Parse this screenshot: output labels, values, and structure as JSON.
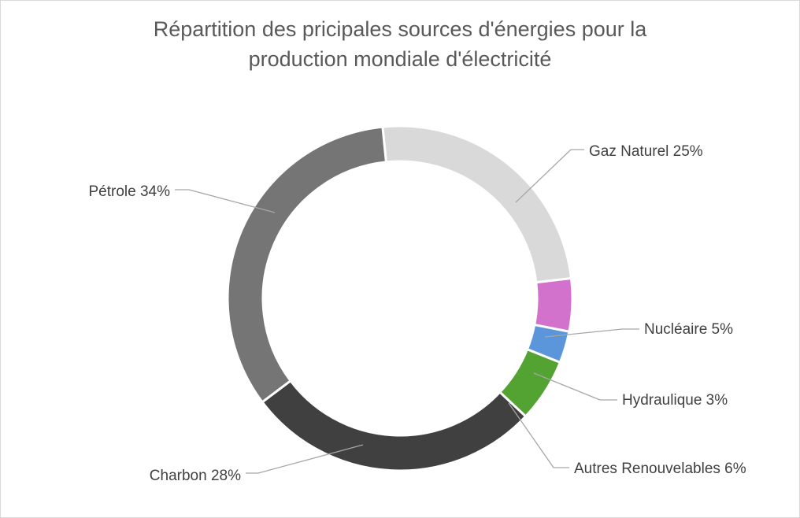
{
  "chart_data": {
    "type": "pie",
    "style": "donut",
    "title_lines": [
      "Répartition des pricipales sources d'énergies pour la",
      "production mondiale d'électricité"
    ],
    "slices": [
      {
        "label": "Gaz Naturel",
        "value": 25,
        "display": "Gaz Naturel 25%",
        "color": "#d9d9d9"
      },
      {
        "label": "Nucléaire",
        "value": 5,
        "display": "Nucléaire 5%",
        "color": "#d272cc"
      },
      {
        "label": "Hydraulique",
        "value": 3,
        "display": "Hydraulique  3%",
        "color": "#5b95da"
      },
      {
        "label": "Autres Renouvelables",
        "value": 6,
        "display": "Autres Renouvelables 6%",
        "color": "#53a332"
      },
      {
        "label": "Charbon",
        "value": 28,
        "display": "Charbon 28%",
        "color": "#404040"
      },
      {
        "label": "Pétrole",
        "value": 34,
        "display": "Pétrole 34%",
        "color": "#757575"
      }
    ],
    "legend": "none"
  }
}
